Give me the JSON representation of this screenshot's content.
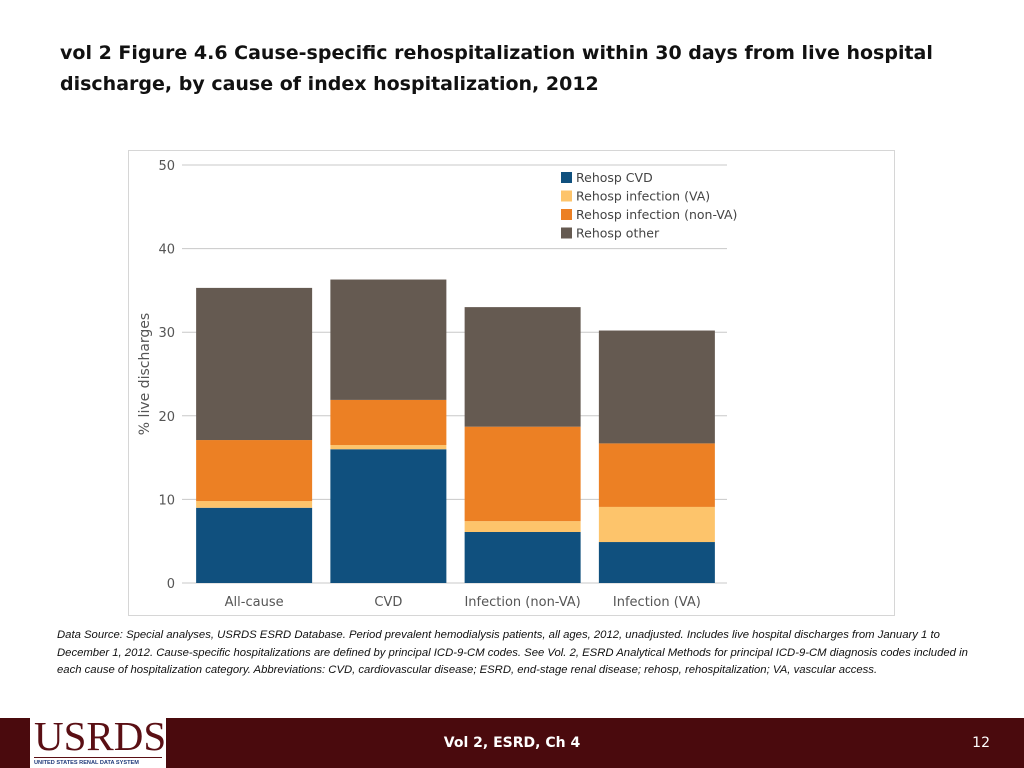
{
  "slide": {
    "title": "vol 2 Figure 4.6 Cause-specific rehospitalization within 30 days from live hospital discharge, by cause of index hospitalization, 2012",
    "footnote": "Data Source: Special analyses, USRDS ESRD Database. Period prevalent hemodialysis patients, all ages, 2012, unadjusted. Includes live hospital discharges from January 1 to December 1, 2012. Cause-specific hospitalizations are defined by principal ICD-9-CM codes. See Vol. 2, ESRD Analytical Methods for principal ICD-9-CM diagnosis codes included in each cause of hospitalization category. Abbreviations: CVD, cardiovascular disease; ESRD, end-stage renal disease; rehosp, rehospitalization; VA, vascular access.",
    "footer_center": "Vol 2, ESRD, Ch 4",
    "page_number": "12",
    "logo_text": "USRDS",
    "logo_subtext": "UNITED STATES RENAL DATA SYSTEM"
  },
  "chart_data": {
    "type": "bar",
    "stacked": true,
    "title": "",
    "xlabel": "",
    "ylabel": "% live discharges",
    "ylim": [
      0,
      50
    ],
    "yticks": [
      0,
      10,
      20,
      30,
      40,
      50
    ],
    "grid": true,
    "legend_position": "top-right",
    "categories": [
      "All-cause",
      "CVD",
      "Infection (non-VA)",
      "Infection (VA)"
    ],
    "series": [
      {
        "name": "Rehosp CVD",
        "color": "#10507e",
        "values": [
          9.0,
          16.0,
          6.1,
          4.9
        ]
      },
      {
        "name": "Rehosp infection (VA)",
        "color": "#fdc46b",
        "values": [
          0.8,
          0.5,
          1.3,
          4.2
        ]
      },
      {
        "name": "Rehosp infection (non-VA)",
        "color": "#ec8024",
        "values": [
          7.3,
          5.4,
          11.3,
          7.6
        ]
      },
      {
        "name": "Rehosp other",
        "color": "#655a51",
        "values": [
          18.2,
          14.4,
          14.3,
          13.5
        ]
      }
    ],
    "gridline_color": "#c8c8c8",
    "axis_text_color": "#555555"
  }
}
